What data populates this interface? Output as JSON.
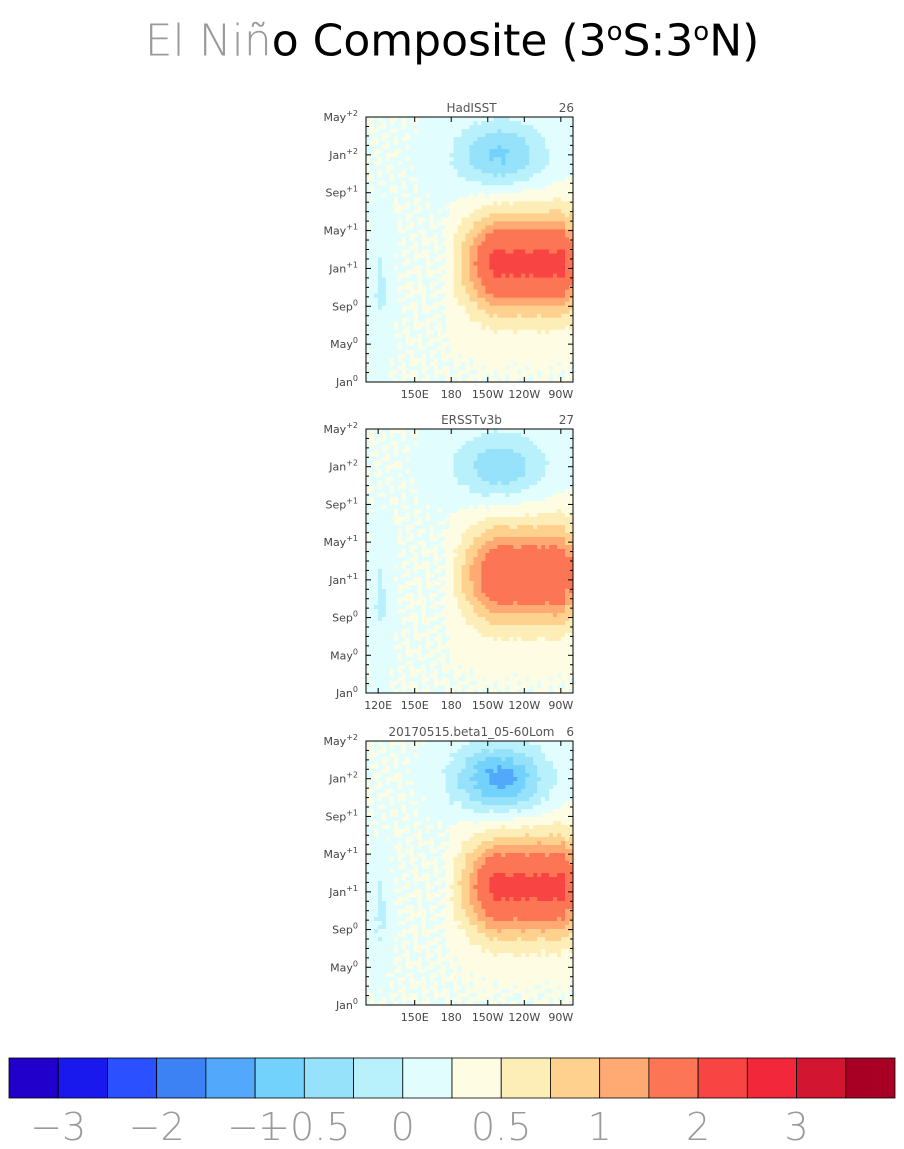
{
  "title": {
    "light": "El Niñ",
    "dark": "o Composite (3",
    "sup1": "o",
    "mid": "S:3",
    "sup2": "o",
    "end": "N)"
  },
  "chart_data": [
    {
      "type": "heatmap",
      "panel": "HadISST",
      "count": "26",
      "x_ticks": [
        "150E",
        "180",
        "150W",
        "120W",
        "90W"
      ],
      "y_ticks": [
        {
          "base": "Jan",
          "sup": "0"
        },
        {
          "base": "May",
          "sup": "0"
        },
        {
          "base": "Sep",
          "sup": "0"
        },
        {
          "base": "Jan",
          "sup": "+1"
        },
        {
          "base": "May",
          "sup": "+1"
        },
        {
          "base": "Sep",
          "sup": "+1"
        },
        {
          "base": "Jan",
          "sup": "+2"
        },
        {
          "base": "May",
          "sup": "+2"
        }
      ],
      "max_warm": 1.6,
      "max_cold": -0.8
    },
    {
      "type": "heatmap",
      "panel": "ERSSTv3b",
      "count": "27",
      "x_ticks": [
        "120E",
        "150E",
        "180",
        "150W",
        "120W",
        "90W"
      ],
      "y_ticks": [
        {
          "base": "Jan",
          "sup": "0"
        },
        {
          "base": "May",
          "sup": "0"
        },
        {
          "base": "Sep",
          "sup": "0"
        },
        {
          "base": "Jan",
          "sup": "+1"
        },
        {
          "base": "May",
          "sup": "+1"
        },
        {
          "base": "Sep",
          "sup": "+1"
        },
        {
          "base": "Jan",
          "sup": "+2"
        },
        {
          "base": "May",
          "sup": "+2"
        }
      ],
      "max_warm": 1.4,
      "max_cold": -0.7
    },
    {
      "type": "heatmap",
      "panel": "20170515.beta1_05-60Lom",
      "count": "6",
      "x_ticks": [
        "150E",
        "180",
        "150W",
        "120W",
        "90W"
      ],
      "y_ticks": [
        {
          "base": "Jan",
          "sup": "0"
        },
        {
          "base": "May",
          "sup": "0"
        },
        {
          "base": "Sep",
          "sup": "0"
        },
        {
          "base": "Jan",
          "sup": "+1"
        },
        {
          "base": "May",
          "sup": "+1"
        },
        {
          "base": "Sep",
          "sup": "+1"
        },
        {
          "base": "Jan",
          "sup": "+2"
        },
        {
          "base": "May",
          "sup": "+2"
        }
      ],
      "max_warm": 1.6,
      "max_cold": -1.1
    }
  ],
  "colorbar": {
    "colors": [
      "#2200cc",
      "#1919ee",
      "#2a50ff",
      "#3c82f5",
      "#52a9fb",
      "#72d2fb",
      "#96e2fb",
      "#b8f1fb",
      "#e1fdfd",
      "#fefde3",
      "#fdeeb8",
      "#fed18e",
      "#feaa72",
      "#fc7655",
      "#f94444",
      "#f2283a",
      "#d21530",
      "#a80025"
    ],
    "labels": [
      "−3",
      "−2",
      "−1",
      "−0.5",
      "0",
      "0.5",
      "1",
      "2",
      "3"
    ],
    "levels": [
      -3,
      -2,
      -1,
      -0.5,
      0,
      0.5,
      1,
      2,
      3
    ]
  }
}
